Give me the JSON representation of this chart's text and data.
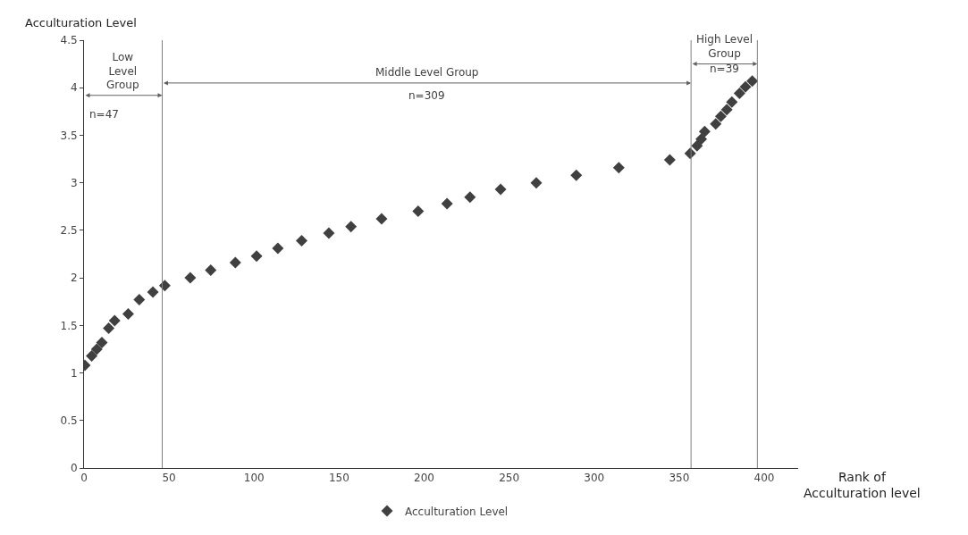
{
  "chart_data": {
    "type": "scatter",
    "xlabel": "Rank of Acculturation level",
    "ylabel": "Acculturation Level",
    "x": [
      0.5,
      4.5,
      7.5,
      10.5,
      14.5,
      18,
      26,
      32.5,
      40.5,
      47.5,
      62.5,
      74.5,
      89,
      101.5,
      114,
      128,
      144,
      157,
      175,
      196.5,
      213.5,
      227,
      245,
      266,
      289.5,
      314.5,
      344.5,
      356.5,
      360.5,
      363,
      365,
      371.5,
      374.5,
      378,
      381,
      385.5,
      389,
      393
    ],
    "series": [
      {
        "name": "Acculturation Level",
        "color": "#404040",
        "values": [
          1.08,
          1.18,
          1.25,
          1.32,
          1.47,
          1.55,
          1.62,
          1.77,
          1.85,
          1.92,
          2.0,
          2.08,
          2.16,
          2.23,
          2.31,
          2.39,
          2.47,
          2.54,
          2.62,
          2.7,
          2.78,
          2.85,
          2.93,
          3.0,
          3.08,
          3.16,
          3.24,
          3.31,
          3.39,
          3.46,
          3.54,
          3.62,
          3.7,
          3.77,
          3.85,
          3.94,
          4.01,
          4.07
        ]
      }
    ],
    "xlim": [
      0,
      420
    ],
    "xticks": [
      0,
      50,
      100,
      150,
      200,
      250,
      300,
      350,
      400
    ],
    "ylim": [
      0,
      4.5
    ],
    "yticks": [
      0,
      0.5,
      1,
      1.5,
      2,
      2.5,
      3,
      3.5,
      4,
      4.5
    ],
    "ref_lines": [
      {
        "axis": "x",
        "value": 46,
        "color": "#808080"
      },
      {
        "axis": "x",
        "value": 357,
        "color": "#808080"
      },
      {
        "axis": "x",
        "value": 396,
        "color": "#808080"
      }
    ],
    "annotations": [
      "Low Level Group",
      "n=47",
      "Middle Level Group",
      "n=309",
      "High Level Group",
      "n=39"
    ],
    "marker": "diamond",
    "legend": "bottom"
  }
}
